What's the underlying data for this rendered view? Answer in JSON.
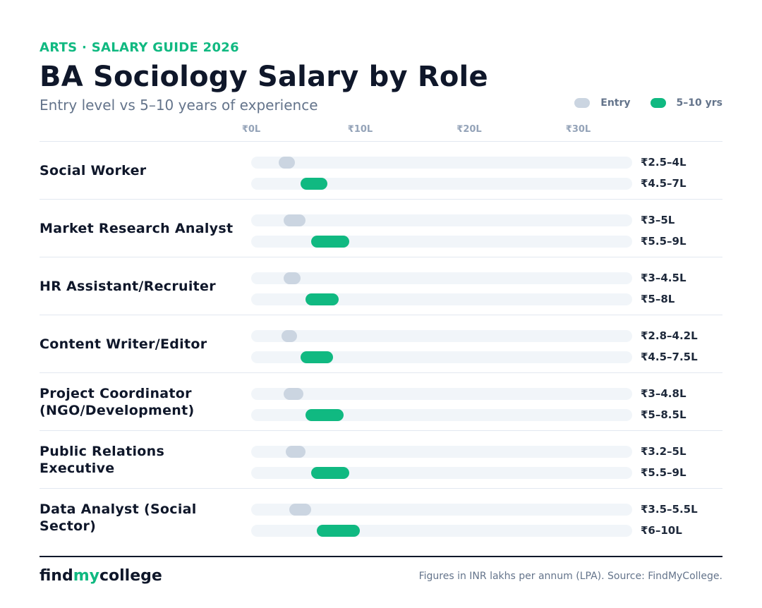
{
  "header": {
    "eyebrow": "ARTS · SALARY GUIDE 2026",
    "title": "BA Sociology Salary by Role",
    "subtitle": "Entry level vs 5–10 years of experience"
  },
  "legend": {
    "entry_label": "Entry",
    "senior_label": "5–10 yrs"
  },
  "colors": {
    "accent": "#10b981",
    "entry_bar": "#cbd5e1",
    "track": "#f1f5f9",
    "text_dark": "#0f172a",
    "text_muted": "#64748b"
  },
  "chart_data": {
    "type": "range-bar",
    "unit": "INR lakhs per annum",
    "xlim": [
      0,
      35
    ],
    "ticks": [
      {
        "value": 0,
        "label": "₹0L"
      },
      {
        "value": 10,
        "label": "₹10L"
      },
      {
        "value": 20,
        "label": "₹20L"
      },
      {
        "value": 30,
        "label": "₹30L"
      }
    ],
    "series": [
      {
        "name": "Entry",
        "key": "entry"
      },
      {
        "name": "5–10 yrs",
        "key": "senior"
      }
    ],
    "roles": [
      {
        "name": "Social Worker",
        "entry": [
          2.5,
          4
        ],
        "entry_label": "₹2.5–4L",
        "senior": [
          4.5,
          7
        ],
        "senior_label": "₹4.5–7L"
      },
      {
        "name": "Market Research Analyst",
        "entry": [
          3,
          5
        ],
        "entry_label": "₹3–5L",
        "senior": [
          5.5,
          9
        ],
        "senior_label": "₹5.5–9L"
      },
      {
        "name": "HR Assistant/Recruiter",
        "entry": [
          3,
          4.5
        ],
        "entry_label": "₹3–4.5L",
        "senior": [
          5,
          8
        ],
        "senior_label": "₹5–8L"
      },
      {
        "name": "Content Writer/Editor",
        "entry": [
          2.8,
          4.2
        ],
        "entry_label": "₹2.8–4.2L",
        "senior": [
          4.5,
          7.5
        ],
        "senior_label": "₹4.5–7.5L"
      },
      {
        "name": "Project Coordinator (NGO/Development)",
        "entry": [
          3,
          4.8
        ],
        "entry_label": "₹3–4.8L",
        "senior": [
          5,
          8.5
        ],
        "senior_label": "₹5–8.5L"
      },
      {
        "name": "Public Relations Executive",
        "entry": [
          3.2,
          5
        ],
        "entry_label": "₹3.2–5L",
        "senior": [
          5.5,
          9
        ],
        "senior_label": "₹5.5–9L"
      },
      {
        "name": "Data Analyst (Social Sector)",
        "entry": [
          3.5,
          5.5
        ],
        "entry_label": "₹3.5–5.5L",
        "senior": [
          6,
          10
        ],
        "senior_label": "₹6–10L"
      }
    ]
  },
  "footer": {
    "brand_prefix": "find",
    "brand_accent": "my",
    "brand_suffix": "college",
    "source": "Figures in INR lakhs per annum (LPA). Source: FindMyCollege."
  }
}
